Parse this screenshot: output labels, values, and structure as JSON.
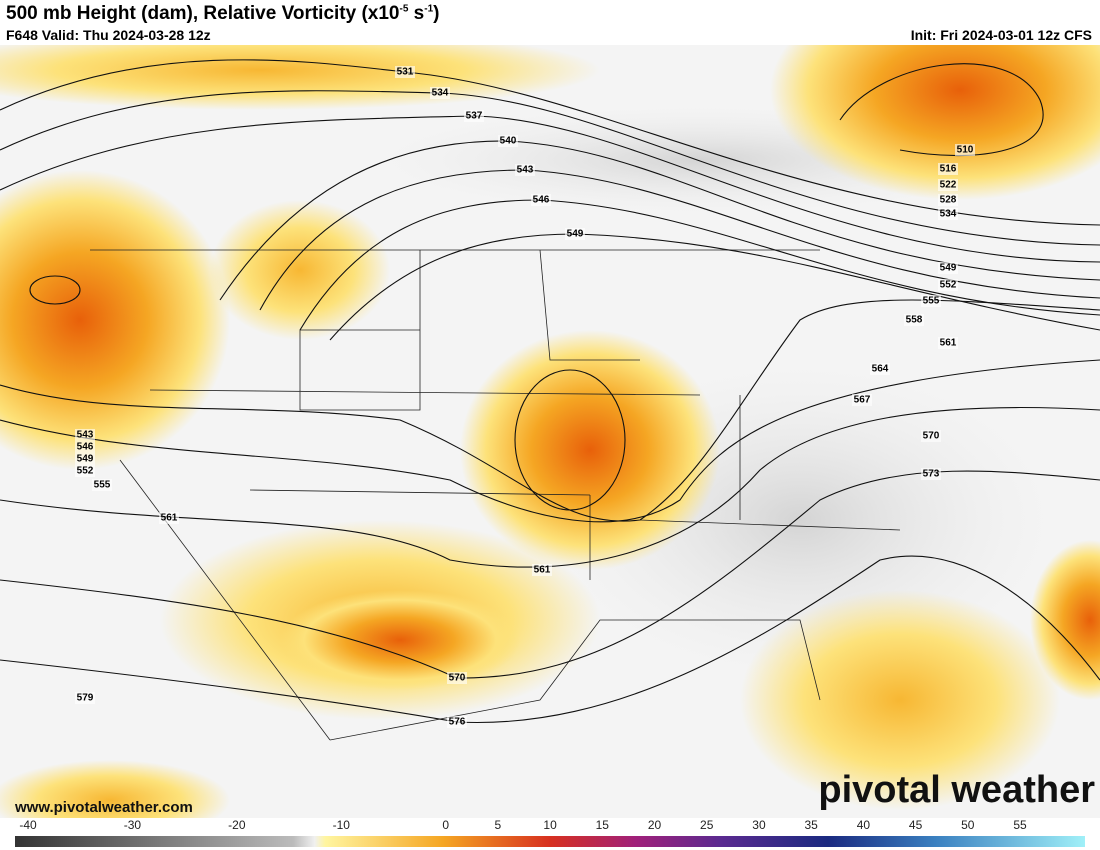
{
  "title": {
    "text": "500 mb Height (dam), Relative Vorticity (x10",
    "exp1": "-5",
    "mid": " s",
    "exp2": "-1",
    "end": ")"
  },
  "subtitle": "F648 Valid: Thu 2024-03-28 12z",
  "init": "Init: Fri 2024-03-01 12z CFS",
  "contour_labels": [
    "531",
    "534",
    "537",
    "540",
    "543",
    "546",
    "549",
    "510",
    "516",
    "522",
    "528",
    "534",
    "549",
    "552",
    "555",
    "558",
    "561",
    "564",
    "567",
    "570",
    "573",
    "543",
    "546",
    "549",
    "552",
    "555",
    "561",
    "561",
    "570",
    "576",
    "579"
  ],
  "colorbar_ticks": [
    -40,
    -30,
    -20,
    -10,
    0,
    5,
    10,
    15,
    20,
    25,
    30,
    35,
    40,
    45,
    50,
    55
  ],
  "website": "www.pivotalweather.com",
  "brand": "pivotal weather"
}
